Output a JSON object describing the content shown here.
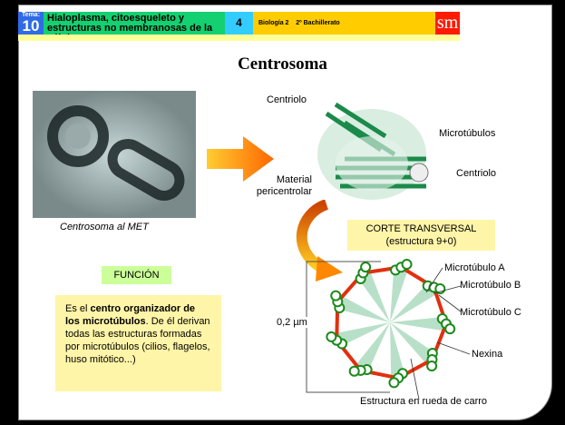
{
  "header": {
    "tema_label": "Tema:",
    "tema_number": "10",
    "title": "Hialoplasma, citoesqueleto y estructuras no membranosas de la célula",
    "unit_number": "4",
    "subject": "Biología 2    2º Bachillerato",
    "logo": "sm"
  },
  "page_title": "Centrosoma",
  "micrograph_caption": "Centrosoma al MET",
  "centrosome_labels": {
    "centriolo_top": "Centriolo",
    "microtubulos": "Microtúbulos",
    "centriolo_right": "Centriolo",
    "material": "Material pericentrolar"
  },
  "function": {
    "heading": "FUNCIÓN",
    "text_pre": "Es el ",
    "text_bold": "centro organizador de los microtúbulos",
    "text_post": ". De él derivan todas las estructuras formadas por microtúbulos (cilios, flagelos, huso mitótico...)"
  },
  "cross_section": {
    "title": "CORTE TRANSVERSAL",
    "subtitle": "(estructura 9+0)",
    "scale": "0,2 µm",
    "labels": {
      "a": "Microtúbulo A",
      "b": "Microtúbulo B",
      "c": "Microtúbulo C",
      "nexina": "Nexina",
      "rueda": "Estructura en rueda de carro"
    }
  },
  "colors": {
    "tema": "#2f6be6",
    "title_bar": "#14d070",
    "unit": "#33ccff",
    "subject": "#ffcc00",
    "logo": "#ff1a00",
    "nexin": "#e03010",
    "tubule": "#1a8a1a",
    "spoke": "#b8e0c8",
    "note": "#fff5a8",
    "function_bg": "#ccff99"
  }
}
